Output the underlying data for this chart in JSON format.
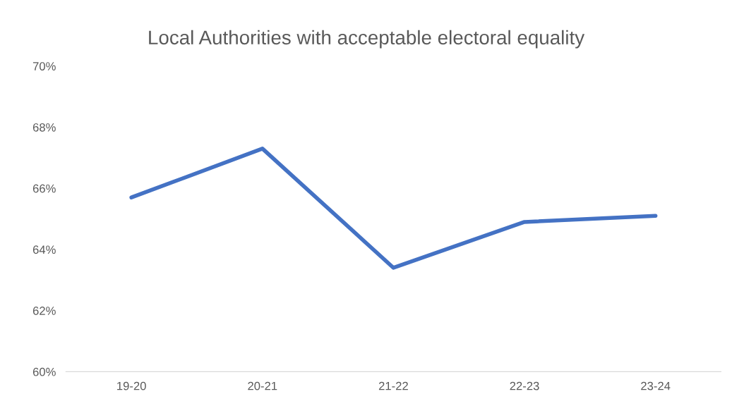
{
  "chart_data": {
    "type": "line",
    "title": "Local Authorities with acceptable electoral equality",
    "categories": [
      "19-20",
      "20-21",
      "21-22",
      "22-23",
      "23-24"
    ],
    "series": [
      {
        "color": "#4472c4",
        "values": [
          65.7,
          67.3,
          63.4,
          64.9,
          65.1
        ]
      }
    ],
    "ylim": [
      60,
      70
    ],
    "yticks": [
      {
        "value": 60,
        "label": "60%"
      },
      {
        "value": 62,
        "label": "62%"
      },
      {
        "value": 64,
        "label": "64%"
      },
      {
        "value": 66,
        "label": "66%"
      },
      {
        "value": 68,
        "label": "68%"
      },
      {
        "value": 70,
        "label": "70%"
      }
    ],
    "grid": false,
    "marker": "none",
    "line_style": "solid"
  }
}
